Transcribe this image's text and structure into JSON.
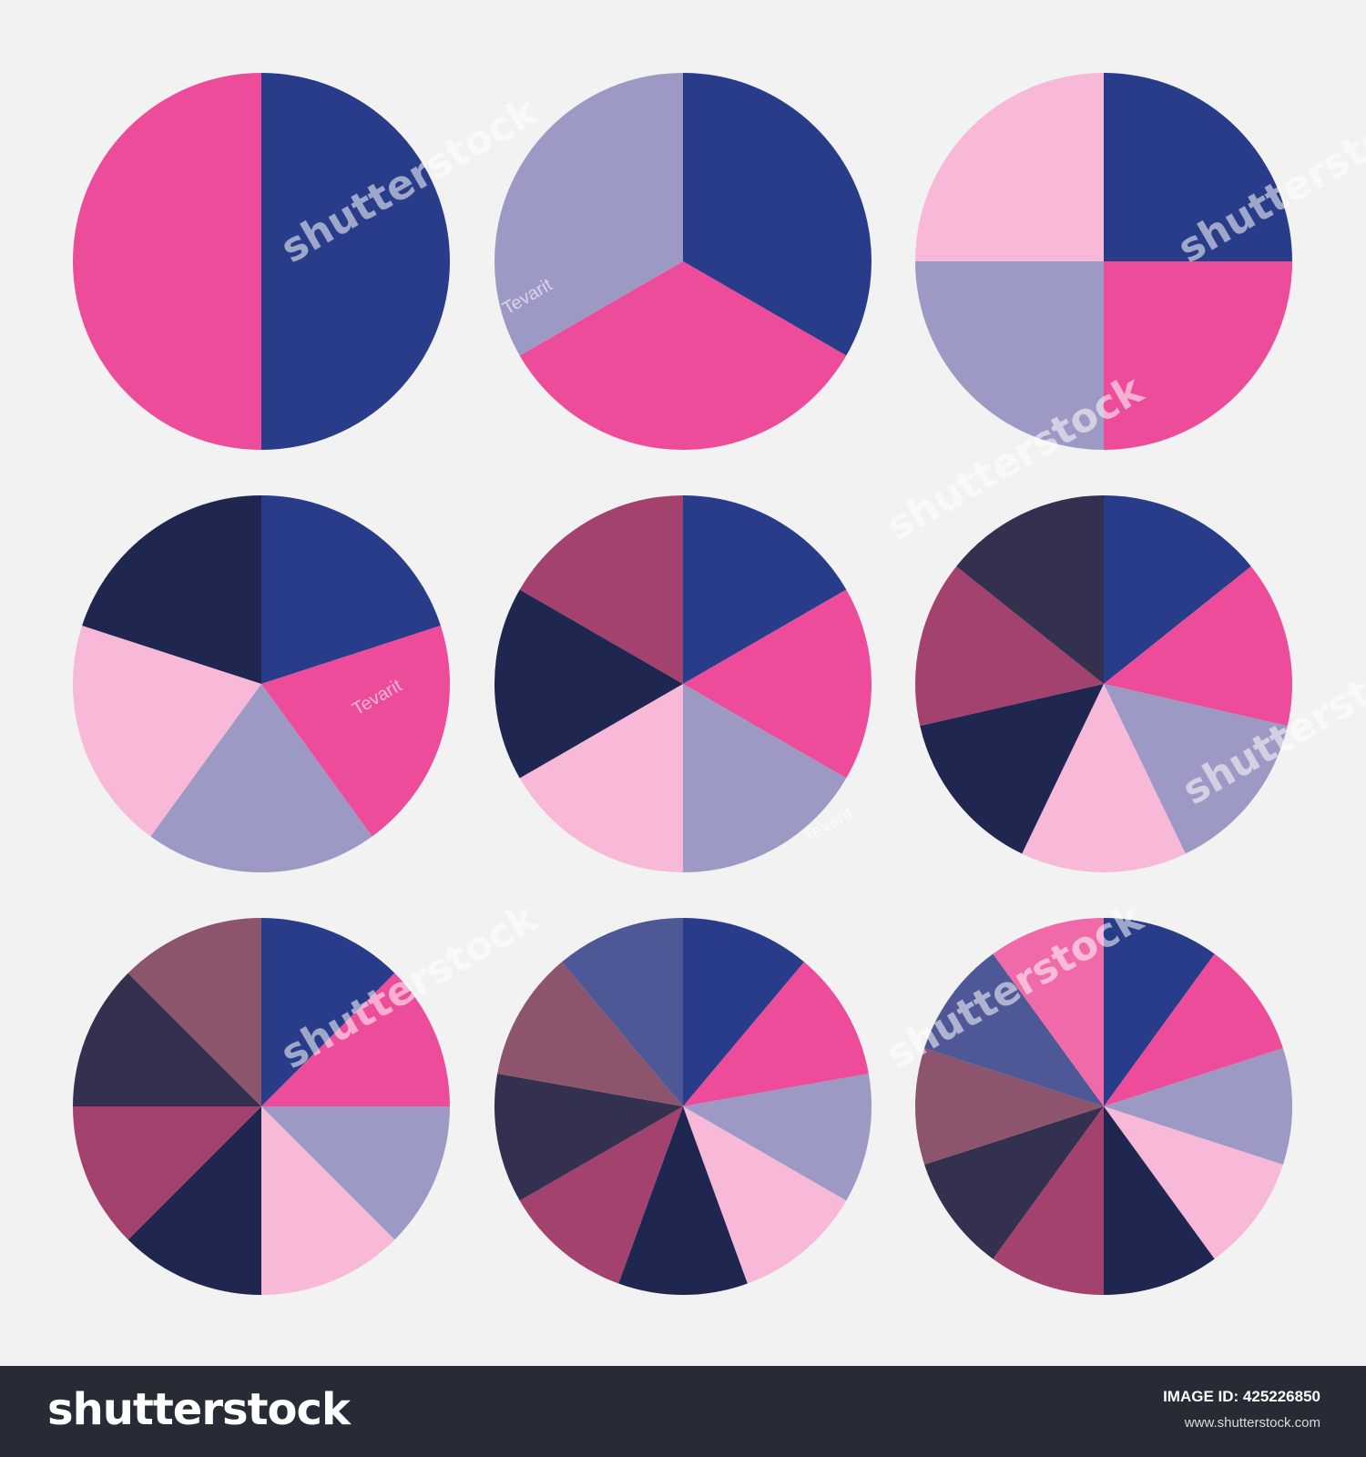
{
  "chart_data": [
    {
      "type": "pie",
      "values": [
        1,
        1
      ],
      "colors": [
        "#283c89",
        "#ec4c99"
      ]
    },
    {
      "type": "pie",
      "values": [
        1,
        1,
        1
      ],
      "colors": [
        "#283c89",
        "#ec4c99",
        "#9c9ac4"
      ]
    },
    {
      "type": "pie",
      "values": [
        1,
        1,
        1,
        1
      ],
      "colors": [
        "#283c89",
        "#ec4c99",
        "#9c9ac4",
        "#f8b8d8"
      ]
    },
    {
      "type": "pie",
      "values": [
        1,
        1,
        1,
        1,
        1
      ],
      "colors": [
        "#283c89",
        "#ec4c99",
        "#9c9ac4",
        "#f8b8d8",
        "#1f2650"
      ]
    },
    {
      "type": "pie",
      "values": [
        1,
        1,
        1,
        1,
        1,
        1
      ],
      "colors": [
        "#283c89",
        "#ec4c99",
        "#9c9ac4",
        "#f8b8d8",
        "#1f2650",
        "#a3426f"
      ]
    },
    {
      "type": "pie",
      "values": [
        1,
        1,
        1,
        1,
        1,
        1,
        1
      ],
      "colors": [
        "#283c89",
        "#ec4c99",
        "#9c9ac4",
        "#f8b8d8",
        "#1f2650",
        "#a3426f",
        "#33314f"
      ]
    },
    {
      "type": "pie",
      "values": [
        1,
        1,
        1,
        1,
        1,
        1,
        1,
        1
      ],
      "colors": [
        "#283c89",
        "#ec4c99",
        "#9c9ac4",
        "#f8b8d8",
        "#1f2650",
        "#a3426f",
        "#33314f",
        "#8d546d"
      ]
    },
    {
      "type": "pie",
      "values": [
        1,
        1,
        1,
        1,
        1,
        1,
        1,
        1,
        1
      ],
      "colors": [
        "#283c89",
        "#ec4c99",
        "#9c9ac4",
        "#f8b8d8",
        "#1f2650",
        "#a3426f",
        "#33314f",
        "#8d546d",
        "#4e5897"
      ]
    },
    {
      "type": "pie",
      "values": [
        1,
        1,
        1,
        1,
        1,
        1,
        1,
        1,
        1,
        1
      ],
      "colors": [
        "#283c89",
        "#ec4c99",
        "#9c9ac4",
        "#f8b8d8",
        "#1f2650",
        "#a3426f",
        "#33314f",
        "#8d546d",
        "#4e5897",
        "#f06aaa"
      ]
    }
  ],
  "watermark": {
    "brand": "shutterstock",
    "credit": "Tevarit"
  },
  "footer": {
    "logo": "shutterstock",
    "image_id_label": "IMAGE ID:",
    "image_id": "425226850",
    "url": "www.shutterstock.com"
  },
  "colors": {
    "background": "#f2f2f2",
    "footer_bg": "#262b35"
  }
}
